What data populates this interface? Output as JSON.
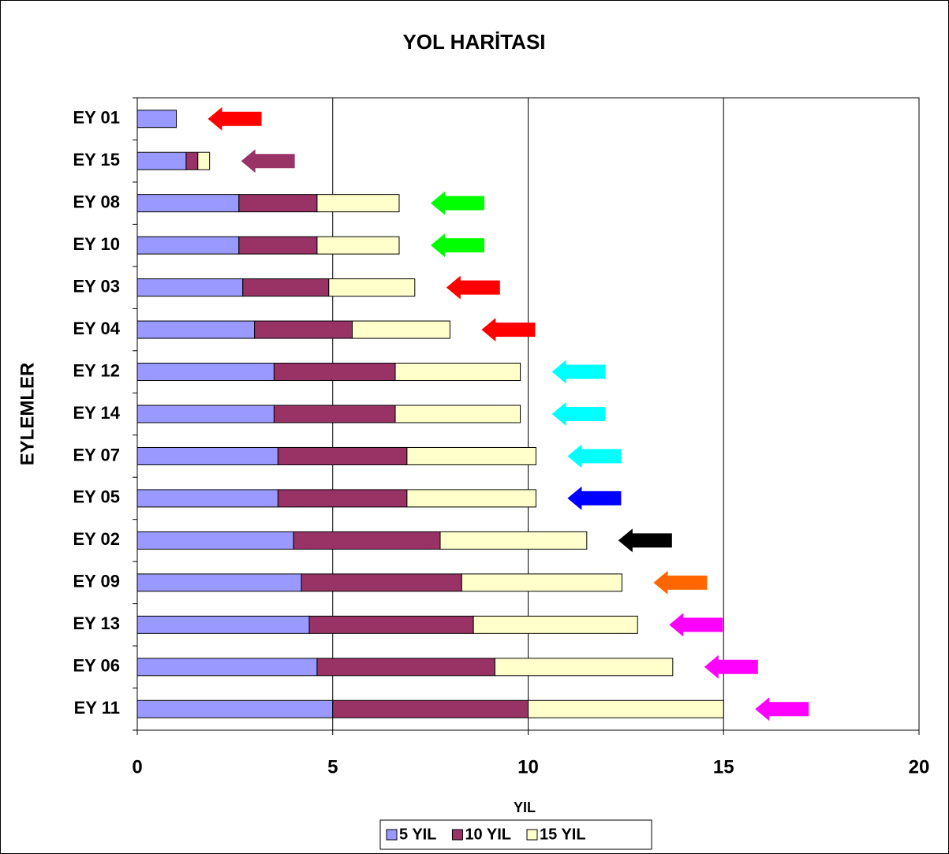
{
  "chart_data": {
    "type": "stacked_barh",
    "title": "YOL HARİTASI",
    "x_label": "YIL",
    "y_label": "EYLEMLER",
    "categories": [
      "EY 01",
      "EY 15",
      "EY 08",
      "EY 10",
      "EY 03",
      "EY 04",
      "EY 12",
      "EY 14",
      "EY 07",
      "EY 05",
      "EY 02",
      "EY 09",
      "EY 13",
      "EY 06",
      "EY 11"
    ],
    "series": [
      {
        "name": "5 YIL",
        "color": "#9999ff",
        "values": [
          1.0,
          1.25,
          2.6,
          2.6,
          2.7,
          3.0,
          3.5,
          3.5,
          3.6,
          3.6,
          4.0,
          4.2,
          4.4,
          4.6,
          5.0
        ]
      },
      {
        "name": "10 YIL",
        "color": "#993366",
        "values": [
          0,
          0.3,
          2.0,
          2.0,
          2.2,
          2.5,
          3.1,
          3.1,
          3.3,
          3.3,
          3.75,
          4.1,
          4.2,
          4.55,
          5.0
        ]
      },
      {
        "name": "15 YIL",
        "color": "#ffffcc",
        "values": [
          0,
          0.3,
          2.1,
          2.1,
          2.2,
          2.5,
          3.2,
          3.2,
          3.3,
          3.3,
          3.75,
          4.1,
          4.2,
          4.55,
          5.0
        ]
      }
    ],
    "arrow_colors": [
      "#ff0000",
      "#993366",
      "#00ff00",
      "#00ff00",
      "#ff0000",
      "#ff0000",
      "#00ffff",
      "#00ffff",
      "#00ffff",
      "#0000ff",
      "#000000",
      "#ff6600",
      "#ff00ff",
      "#ff00ff",
      "#ff00ff"
    ],
    "xlim": [
      0,
      20
    ],
    "xticks": [
      0,
      5,
      10,
      15,
      20
    ],
    "grid": true,
    "legend": "bottom"
  }
}
